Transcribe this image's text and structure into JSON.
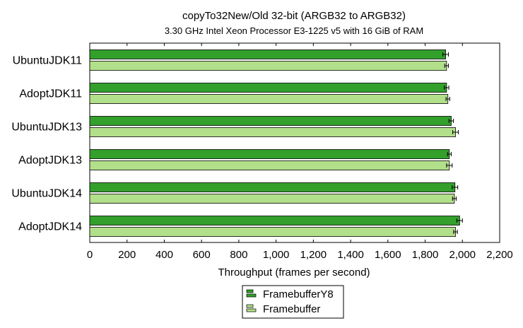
{
  "chart_data": {
    "type": "bar",
    "orientation": "horizontal",
    "title": "copyTo32New/Old 32-bit (ARGB32 to ARGB32)",
    "subtitle": "3.30 GHz Intel Xeon Processor E3-1225 v5 with 16 GiB of RAM",
    "xlabel": "Throughput (frames per second)",
    "ylabel": "",
    "xlim": [
      0,
      2200
    ],
    "x_ticks": [
      0,
      200,
      400,
      600,
      800,
      1000,
      1200,
      1400,
      1600,
      1800,
      2000,
      2200
    ],
    "x_tick_labels": [
      "0",
      "200",
      "400",
      "600",
      "800",
      "1,000",
      "1,200",
      "1,400",
      "1,600",
      "1,800",
      "2,000",
      "2,200"
    ],
    "categories": [
      "UbuntuJDK11",
      "AdoptJDK11",
      "UbuntuJDK13",
      "AdoptJDK13",
      "UbuntuJDK14",
      "AdoptJDK14"
    ],
    "series": [
      {
        "name": "FramebufferY8",
        "color": "#33a02c",
        "values": [
          1910,
          1915,
          1940,
          1930,
          1960,
          1985
        ],
        "errors": [
          15,
          12,
          12,
          10,
          15,
          15
        ]
      },
      {
        "name": "Framebuffer",
        "color": "#b2df8a",
        "values": [
          1915,
          1922,
          1963,
          1930,
          1957,
          1963
        ],
        "errors": [
          10,
          10,
          15,
          15,
          10,
          10
        ]
      }
    ],
    "grid": false,
    "legend_position": "bottom"
  }
}
